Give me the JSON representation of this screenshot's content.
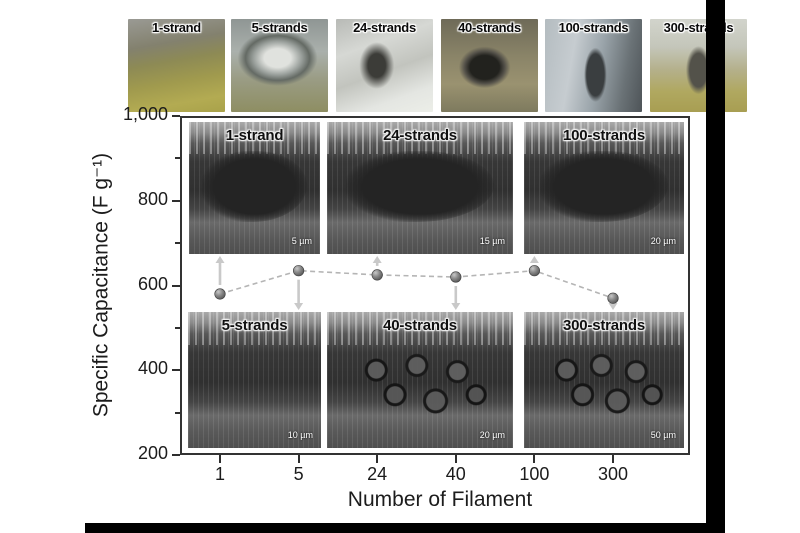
{
  "photo_strip": {
    "items": [
      {
        "label": "1-strand"
      },
      {
        "label": "5-strands"
      },
      {
        "label": "24-strands"
      },
      {
        "label": "40-strands"
      },
      {
        "label": "100-strands"
      },
      {
        "label": "300-strands"
      }
    ]
  },
  "sem_insets": {
    "top": [
      {
        "label": "1-strand",
        "scale_bar": "5 µm"
      },
      {
        "label": "24-strands",
        "scale_bar": "15 µm"
      },
      {
        "label": "100-strands",
        "scale_bar": "20 µm"
      }
    ],
    "bottom": [
      {
        "label": "5-strands",
        "scale_bar": "10 µm"
      },
      {
        "label": "40-strands",
        "scale_bar": "20 µm"
      },
      {
        "label": "300-strands",
        "scale_bar": "50 µm"
      }
    ]
  },
  "chart": {
    "ylabel": "Specific Capacitance (F g⁻¹)",
    "xlabel": "Number of Filament",
    "ytick_labels": [
      "200",
      "400",
      "600",
      "800",
      "1,000"
    ],
    "xtick_labels": [
      "1",
      "5",
      "24",
      "40",
      "100",
      "300"
    ]
  },
  "chart_data": {
    "type": "line",
    "categories": [
      "1",
      "5",
      "24",
      "40",
      "100",
      "300"
    ],
    "values": [
      580,
      635,
      625,
      620,
      635,
      570
    ],
    "title": "",
    "xlabel": "Number of Filament",
    "ylabel": "Specific Capacitance (F g⁻¹)",
    "ylim": [
      200,
      1000
    ],
    "yticks": [
      200,
      400,
      600,
      800,
      1000
    ],
    "minor_yticks": [
      300,
      500,
      700,
      900
    ],
    "grid": "off",
    "legend": "none",
    "line_style": "dashed",
    "marker": "gray-sphere",
    "annotations": {
      "arrow_up_categories": [
        "1",
        "24",
        "100"
      ],
      "arrow_down_categories": [
        "5",
        "40",
        "300"
      ]
    }
  },
  "colors": {
    "background": "#ffffff",
    "axis": "#2e2e2e",
    "dashed_line": "#b5b5b5",
    "data_point": "#6a6a6a",
    "arrow": "#c9c9c9",
    "border_bars": "#000000"
  }
}
